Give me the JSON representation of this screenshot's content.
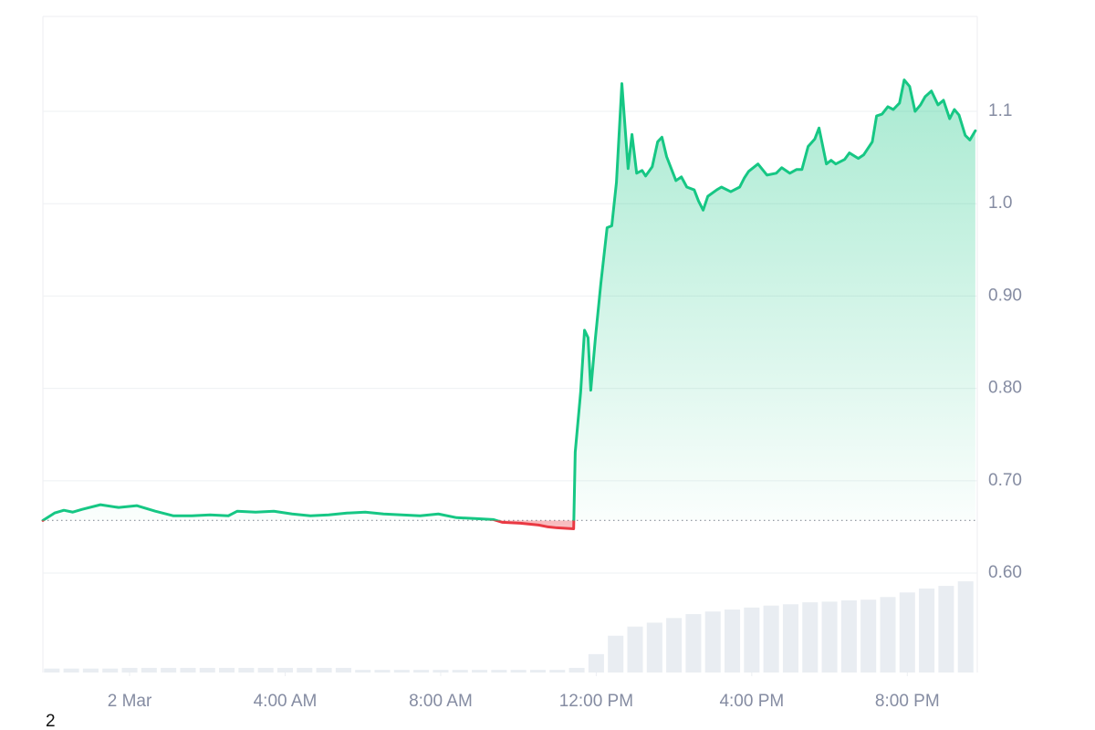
{
  "chart_data": {
    "type": "line",
    "baseline": 0.657,
    "up_color": "#16c784",
    "down_color": "#ea3943",
    "grid": true,
    "y_axis_side": "right",
    "xlim": [
      -2.23,
      21.8
    ],
    "xticks": [
      {
        "value": 0,
        "label": "2 Mar"
      },
      {
        "value": 4,
        "label": "4:00 AM"
      },
      {
        "value": 8,
        "label": "8:00 AM"
      },
      {
        "value": 12,
        "label": "12:00 PM"
      },
      {
        "value": 16,
        "label": "4:00 PM"
      },
      {
        "value": 20,
        "label": "8:00 PM"
      }
    ],
    "ylim": [
      0.4923,
      1.2028
    ],
    "yticks": [
      {
        "value": 0.6,
        "label": "0.60"
      },
      {
        "value": 0.7,
        "label": "0.70"
      },
      {
        "value": 0.8,
        "label": "0.80"
      },
      {
        "value": 0.9,
        "label": "0.90"
      },
      {
        "value": 1,
        "label": "1.0"
      },
      1.1
    ],
    "y2lim": [
      0,
      100
    ],
    "series": [
      {
        "x": [
          -2.23,
          -1.93,
          -1.69,
          -1.46,
          -1.22,
          -0.75,
          -0.28,
          0.19,
          0.66,
          1.13,
          1.6,
          2.07,
          2.54,
          2.77,
          3.24,
          3.71,
          4.18,
          4.65,
          5.12,
          5.59,
          6.06,
          6.53,
          7.0,
          7.47,
          7.94,
          8.41,
          8.88,
          9.35,
          9.58,
          10.05,
          10.52,
          10.76,
          10.99,
          11.42,
          11.46,
          11.6,
          11.7,
          11.79,
          11.86,
          11.98,
          12.12,
          12.28,
          12.4,
          12.52,
          12.66,
          12.82,
          12.92,
          13.04,
          13.18,
          13.27,
          13.44,
          13.58,
          13.69,
          13.81,
          14.05,
          14.19,
          14.33,
          14.52,
          14.63,
          14.75,
          14.87,
          15.1,
          15.22,
          15.46,
          15.69,
          15.81,
          15.92,
          16.16,
          16.39,
          16.63,
          16.77,
          16.98,
          17.15,
          17.29,
          17.45,
          17.62,
          17.73,
          17.92,
          18.04,
          18.16,
          18.39,
          18.51,
          18.74,
          18.88,
          19.1,
          19.21,
          19.35,
          19.5,
          19.64,
          19.8,
          19.92,
          20.06,
          20.2,
          20.34,
          20.46,
          20.62,
          20.79,
          20.93,
          21.09,
          21.21,
          21.33,
          21.49,
          21.61,
          21.75
        ],
        "values": [
          0.657,
          0.665,
          0.668,
          0.666,
          0.669,
          0.674,
          0.671,
          0.673,
          0.667,
          0.662,
          0.662,
          0.663,
          0.662,
          0.667,
          0.666,
          0.667,
          0.664,
          0.662,
          0.663,
          0.665,
          0.666,
          0.664,
          0.663,
          0.662,
          0.664,
          0.66,
          0.659,
          0.658,
          0.655,
          0.654,
          0.652,
          0.65,
          0.649,
          0.648,
          0.731,
          0.796,
          0.863,
          0.855,
          0.798,
          0.855,
          0.914,
          0.974,
          0.976,
          1.023,
          1.13,
          1.038,
          1.075,
          1.033,
          1.036,
          1.03,
          1.04,
          1.067,
          1.072,
          1.051,
          1.025,
          1.029,
          1.018,
          1.015,
          1.003,
          0.993,
          1.008,
          1.015,
          1.018,
          1.013,
          1.018,
          1.028,
          1.035,
          1.043,
          1.031,
          1.033,
          1.039,
          1.033,
          1.037,
          1.037,
          1.062,
          1.07,
          1.082,
          1.043,
          1.047,
          1.043,
          1.048,
          1.055,
          1.049,
          1.053,
          1.067,
          1.095,
          1.097,
          1.105,
          1.102,
          1.109,
          1.134,
          1.127,
          1.1,
          1.107,
          1.116,
          1.122,
          1.107,
          1.112,
          1.092,
          1.102,
          1.096,
          1.074,
          1.069,
          1.079
        ]
      },
      {
        "axis": "y2",
        "type": "bar",
        "color": "#e9edf2",
        "x": [
          -2,
          -1.5,
          -1,
          -0.5,
          0,
          0.5,
          1,
          1.5,
          2,
          2.5,
          3,
          3.5,
          4,
          4.5,
          5,
          5.5,
          6,
          6.5,
          7,
          7.5,
          8,
          8.5,
          9,
          9.5,
          10,
          10.5,
          11,
          11.5,
          12,
          12.5,
          13,
          13.5,
          14,
          14.5,
          15,
          15.5,
          16,
          16.5,
          17,
          17.5,
          18,
          18.5,
          19,
          19.5,
          20,
          20.5,
          21,
          21.5
        ],
        "values": [
          0.6,
          0.6,
          0.6,
          0.6,
          0.7,
          0.7,
          0.7,
          0.7,
          0.7,
          0.7,
          0.7,
          0.7,
          0.7,
          0.7,
          0.7,
          0.7,
          0.4,
          0.4,
          0.4,
          0.4,
          0.4,
          0.4,
          0.4,
          0.4,
          0.4,
          0.4,
          0.4,
          0.7,
          2.8,
          5.6,
          7.0,
          7.6,
          8.3,
          8.9,
          9.3,
          9.6,
          9.9,
          10.2,
          10.4,
          10.7,
          10.8,
          11.0,
          11.1,
          11.5,
          12.2,
          12.8,
          13.2,
          13.9
        ]
      }
    ]
  },
  "footnote": "2"
}
